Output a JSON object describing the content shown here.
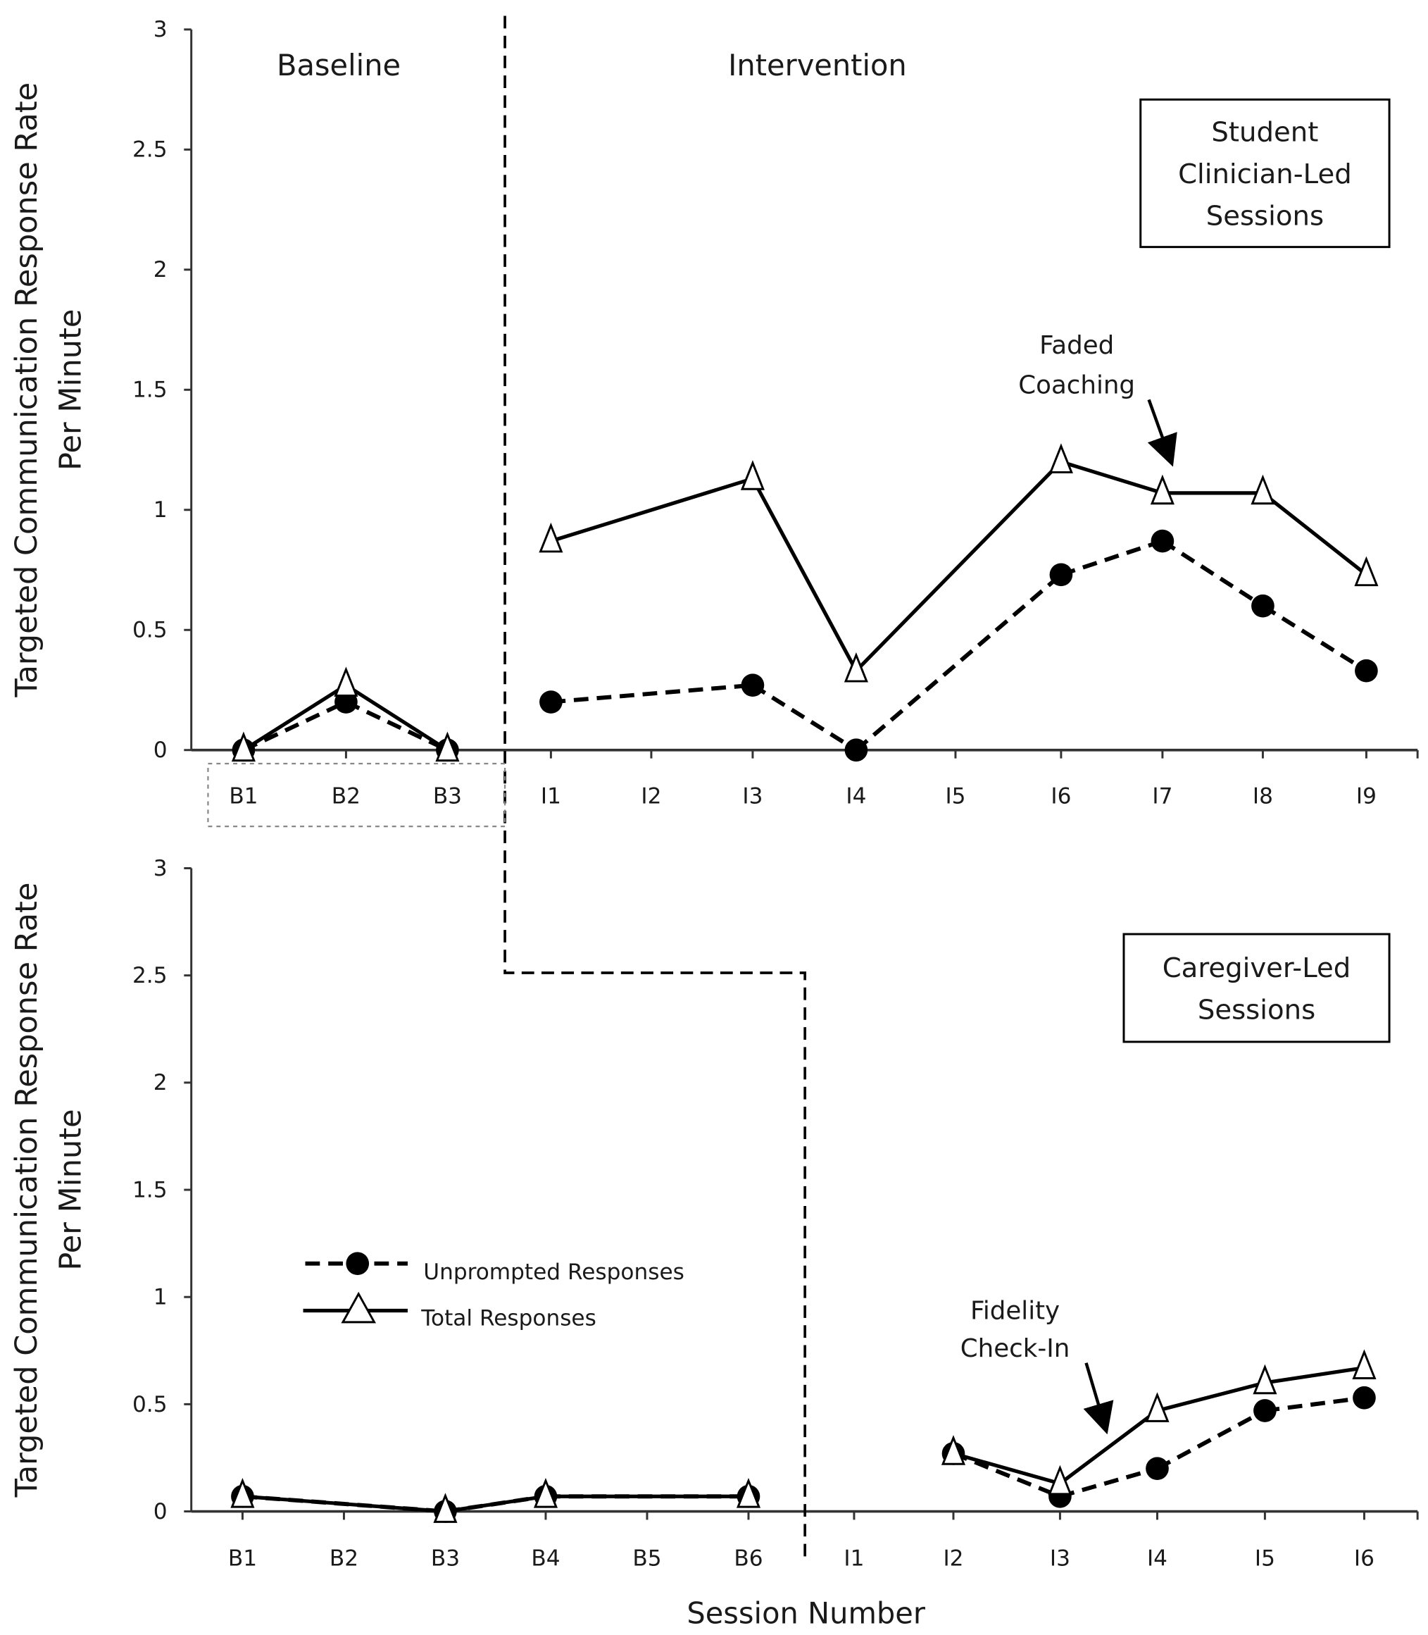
{
  "chart_data": [
    {
      "type": "line",
      "panel": "Student Clinician-Led Sessions",
      "box_lines": [
        "Student",
        "Clinician-Led",
        "Sessions"
      ],
      "phase_labels": [
        "Baseline",
        "Intervention"
      ],
      "ylabel_lines": [
        "Targeted Communication Response Rate",
        "Per Minute"
      ],
      "ylim": [
        0,
        3
      ],
      "yticks": [
        "0",
        "0.5",
        "1",
        "1.5",
        "2",
        "2.5",
        "3"
      ],
      "categories": [
        "B1",
        "B2",
        "B3",
        "I1",
        "I2",
        "I3",
        "I4",
        "I5",
        "I6",
        "I7",
        "I8",
        "I9"
      ],
      "series": [
        {
          "name": "Unprompted Responses",
          "values": [
            0,
            0.2,
            0,
            0.2,
            null,
            0.27,
            0,
            null,
            0.73,
            0.87,
            0.6,
            0.33
          ]
        },
        {
          "name": "Total Responses",
          "values": [
            0,
            0.27,
            0,
            0.87,
            null,
            1.13,
            0.33,
            null,
            1.2,
            1.07,
            1.07,
            0.73
          ]
        }
      ],
      "annotation": {
        "lines": [
          "Faded",
          "Coaching"
        ],
        "at": "I7"
      }
    },
    {
      "type": "line",
      "panel": "Caregiver-Led Sessions",
      "box_lines": [
        "Caregiver-Led",
        "Sessions"
      ],
      "ylabel_lines": [
        "Targeted Communication Response Rate",
        "Per Minute"
      ],
      "xlabel": "Session Number",
      "ylim": [
        0,
        3
      ],
      "yticks": [
        "0",
        "0.5",
        "1",
        "1.5",
        "2",
        "2.5",
        "3"
      ],
      "categories": [
        "B1",
        "B2",
        "B3",
        "B4",
        "B5",
        "B6",
        "I1",
        "I2",
        "I3",
        "I4",
        "I5",
        "I6"
      ],
      "series": [
        {
          "name": "Unprompted Responses",
          "values": [
            0.07,
            null,
            0,
            0.07,
            null,
            0.07,
            null,
            0.27,
            0.07,
            0.2,
            0.47,
            0.53
          ]
        },
        {
          "name": "Total Responses",
          "values": [
            0.07,
            null,
            0,
            0.07,
            null,
            0.07,
            null,
            0.27,
            0.13,
            0.47,
            0.6,
            0.67
          ]
        }
      ],
      "annotation": {
        "lines": [
          "Fidelity",
          "Check-In"
        ],
        "at": "I3"
      },
      "legend": {
        "placement": "center-left",
        "entries": [
          "Unprompted Responses",
          "Total Responses"
        ]
      }
    }
  ]
}
